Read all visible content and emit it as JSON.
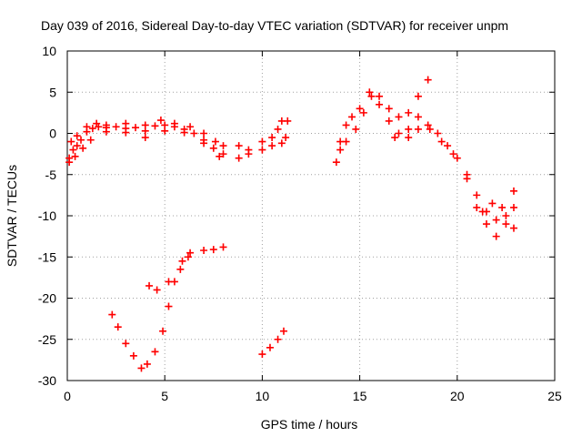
{
  "chart_data": {
    "type": "scatter",
    "title": "Day 039 of 2016, Sidereal Day-to-day VTEC variation (SDTVAR) for receiver unpm",
    "xlabel": "GPS time / hours",
    "ylabel": "SDTVAR / TECUs",
    "xlim": [
      0,
      25
    ],
    "ylim": [
      -30,
      10
    ],
    "xticks": [
      "0",
      "5",
      "10",
      "15",
      "20",
      "25"
    ],
    "yticks": [
      "10",
      "5",
      "0",
      "-5",
      "-10",
      "-15",
      "-20",
      "-25",
      "-30"
    ],
    "xtick_values": [
      0,
      5,
      10,
      15,
      20,
      25
    ],
    "ytick_values": [
      10,
      5,
      0,
      -5,
      -10,
      -15,
      -20,
      -25,
      -30
    ],
    "grid": true,
    "marker": "plus",
    "series_color": "#ff0000",
    "series": [
      {
        "values": [
          [
            0.1,
            -3.0
          ],
          [
            0.3,
            -2.0
          ],
          [
            0.5,
            -1.5
          ],
          [
            0.7,
            -0.8
          ],
          [
            1.0,
            0.2
          ],
          [
            1.3,
            0.6
          ],
          [
            1.6,
            0.8
          ],
          [
            2.0,
            0.7
          ],
          [
            2.5,
            0.8
          ],
          [
            3.0,
            0.6
          ],
          [
            3.5,
            0.7
          ],
          [
            4.0,
            0.3
          ],
          [
            4.5,
            0.9
          ],
          [
            5.0,
            1.0
          ],
          [
            5.5,
            0.8
          ],
          [
            6.0,
            0.5
          ],
          [
            6.5,
            0.0
          ],
          [
            7.0,
            -0.8
          ],
          [
            7.5,
            -1.8
          ],
          [
            8.0,
            -2.5
          ],
          [
            0.2,
            -1.0
          ],
          [
            0.5,
            -0.3
          ],
          [
            1.0,
            0.8
          ],
          [
            1.5,
            1.2
          ],
          [
            2.0,
            1.0
          ],
          [
            3.0,
            1.2
          ],
          [
            4.0,
            1.0
          ],
          [
            4.8,
            1.6
          ],
          [
            5.5,
            1.2
          ],
          [
            6.3,
            0.8
          ],
          [
            7.0,
            0.0
          ],
          [
            7.6,
            -1.0
          ],
          [
            8.0,
            -1.5
          ],
          [
            0.1,
            -3.5
          ],
          [
            0.4,
            -2.8
          ],
          [
            0.8,
            -1.8
          ],
          [
            1.2,
            -0.8
          ],
          [
            2.0,
            0.2
          ],
          [
            3.0,
            0.1
          ],
          [
            4.0,
            -0.5
          ],
          [
            5.0,
            0.3
          ],
          [
            6.0,
            0.1
          ],
          [
            7.0,
            -1.2
          ],
          [
            7.8,
            -2.8
          ],
          [
            8.8,
            -3.0
          ],
          [
            9.3,
            -2.5
          ],
          [
            10.0,
            -2.0
          ],
          [
            10.5,
            -1.5
          ],
          [
            11.0,
            -1.2
          ],
          [
            11.2,
            -0.5
          ],
          [
            8.8,
            -1.5
          ],
          [
            9.3,
            -2.0
          ],
          [
            10.0,
            -1.0
          ],
          [
            10.5,
            -0.5
          ],
          [
            10.8,
            0.5
          ],
          [
            11.0,
            1.5
          ],
          [
            11.3,
            1.5
          ],
          [
            13.8,
            -3.5
          ],
          [
            14.0,
            -2.0
          ],
          [
            14.3,
            -1.0
          ],
          [
            14.8,
            0.5
          ],
          [
            15.2,
            2.5
          ],
          [
            15.6,
            4.5
          ],
          [
            16.0,
            3.5
          ],
          [
            16.5,
            1.5
          ],
          [
            17.0,
            0.0
          ],
          [
            17.5,
            -0.5
          ],
          [
            18.0,
            0.5
          ],
          [
            18.5,
            1.0
          ],
          [
            19.0,
            0.0
          ],
          [
            19.5,
            -1.5
          ],
          [
            20.0,
            -3.0
          ],
          [
            20.5,
            -5.0
          ],
          [
            21.0,
            -7.5
          ],
          [
            21.5,
            -9.5
          ],
          [
            22.0,
            -10.5
          ],
          [
            22.5,
            -11.0
          ],
          [
            22.9,
            -11.5
          ],
          [
            14.0,
            -1.0
          ],
          [
            14.3,
            1.0
          ],
          [
            14.6,
            2.0
          ],
          [
            15.0,
            3.0
          ],
          [
            15.5,
            5.0
          ],
          [
            16.0,
            4.5
          ],
          [
            16.5,
            3.0
          ],
          [
            17.0,
            2.0
          ],
          [
            17.5,
            2.5
          ],
          [
            18.0,
            4.5
          ],
          [
            18.5,
            6.5
          ],
          [
            16.8,
            -0.5
          ],
          [
            17.5,
            0.5
          ],
          [
            18.0,
            2.0
          ],
          [
            18.6,
            0.5
          ],
          [
            19.2,
            -1.0
          ],
          [
            19.8,
            -2.5
          ],
          [
            20.5,
            -5.5
          ],
          [
            21.0,
            -9.0
          ],
          [
            21.5,
            -11.0
          ],
          [
            22.0,
            -12.5
          ],
          [
            22.5,
            -10.0
          ],
          [
            22.9,
            -9.0
          ],
          [
            21.3,
            -9.5
          ],
          [
            21.8,
            -8.5
          ],
          [
            22.3,
            -9.0
          ],
          [
            22.9,
            -7.0
          ],
          [
            2.3,
            -22.0
          ],
          [
            2.6,
            -23.5
          ],
          [
            3.0,
            -25.5
          ],
          [
            3.4,
            -27.0
          ],
          [
            3.8,
            -28.5
          ],
          [
            4.1,
            -28.0
          ],
          [
            4.5,
            -26.5
          ],
          [
            4.9,
            -24.0
          ],
          [
            5.2,
            -21.0
          ],
          [
            5.5,
            -18.0
          ],
          [
            5.9,
            -15.5
          ],
          [
            6.3,
            -14.5
          ],
          [
            7.0,
            -14.2
          ],
          [
            7.5,
            -14.1
          ],
          [
            8.0,
            -13.8
          ],
          [
            4.2,
            -18.5
          ],
          [
            4.6,
            -19.0
          ],
          [
            5.2,
            -18.0
          ],
          [
            5.8,
            -16.5
          ],
          [
            6.2,
            -15.0
          ],
          [
            10.0,
            -26.8
          ],
          [
            10.4,
            -26.0
          ],
          [
            10.8,
            -25.0
          ],
          [
            11.1,
            -24.0
          ]
        ]
      }
    ]
  }
}
